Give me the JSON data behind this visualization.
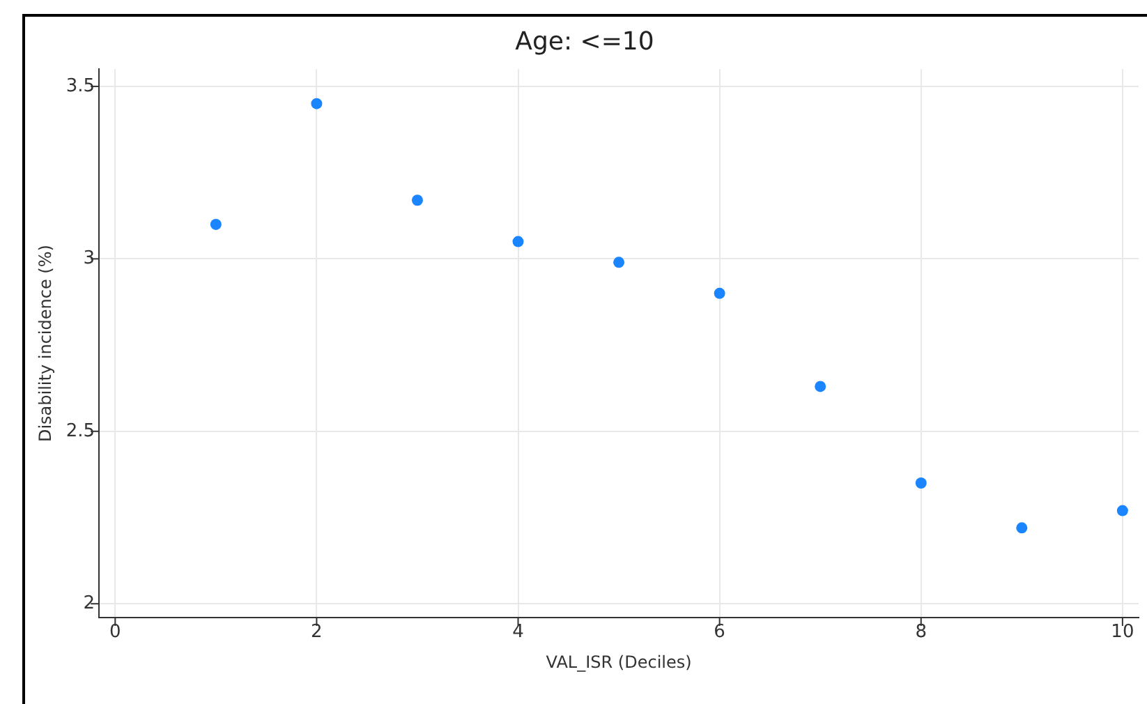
{
  "chart_data": {
    "type": "scatter",
    "title": "Age: <=10",
    "xlabel": "VAL_ISR (Deciles)",
    "ylabel": "Disability incidence (%)",
    "x": [
      1,
      2,
      3,
      4,
      5,
      6,
      7,
      8,
      9,
      10
    ],
    "series": [
      {
        "color": "#1a85ff",
        "values": [
          3.1,
          3.45,
          3.17,
          3.05,
          2.99,
          2.9,
          2.63,
          2.35,
          2.22,
          2.27
        ]
      }
    ],
    "xlim": [
      -0.16,
      10.16
    ],
    "xticks": [
      0,
      2,
      4,
      6,
      8,
      10
    ],
    "ylim": [
      1.96,
      3.55
    ],
    "yticks": [
      {
        "value": 2,
        "label": "2"
      },
      {
        "value": 2.5,
        "label": "2.5"
      },
      {
        "value": 3,
        "label": "3"
      },
      {
        "value": 3.5,
        "label": "3.5"
      }
    ],
    "grid": true,
    "legend": false,
    "marker": "circle"
  }
}
